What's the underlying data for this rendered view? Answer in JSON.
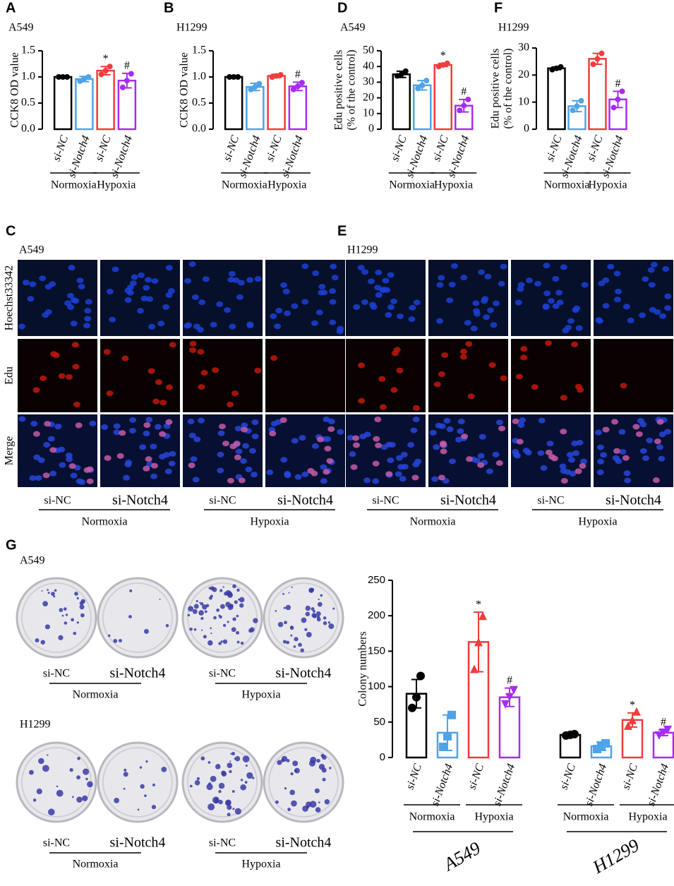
{
  "chart_data": [
    {
      "type": "bar",
      "panel": "A",
      "title": "A549",
      "ylabel": [
        "CCK8 OD value"
      ],
      "categories": [
        "si-NC",
        "si-Notch4",
        "si-NC",
        "si-Notch4"
      ],
      "groups": [
        "Normoxia",
        "Hypoxia"
      ],
      "values": [
        1.0,
        0.96,
        1.12,
        0.93
      ],
      "errors": [
        0.01,
        0.05,
        0.08,
        0.14
      ],
      "points": [
        [
          1.0,
          1.0,
          1.0
        ],
        [
          0.92,
          0.97,
          1.0
        ],
        [
          1.05,
          1.12,
          1.2
        ],
        [
          0.8,
          0.93,
          1.06
        ]
      ],
      "markers": [
        null,
        null,
        "*",
        "#"
      ],
      "colors": [
        "#000000",
        "#4fa3e8",
        "#f03c3c",
        "#a52cf0"
      ],
      "ylim": [
        0,
        1.5
      ],
      "yticks": [
        {
          "value": 0,
          "label": "0.0"
        },
        {
          "value": 0.5,
          "label": "0.5"
        },
        {
          "value": 1,
          "label": "1.0"
        },
        {
          "value": 1.5,
          "label": "1.5"
        }
      ]
    },
    {
      "type": "bar",
      "panel": "B",
      "title": "H1299",
      "ylabel": [
        "CCK8 OD value"
      ],
      "categories": [
        "si-NC",
        "si-Notch4",
        "si-NC",
        "si-Notch4"
      ],
      "groups": [
        "Normoxia",
        "Hypoxia"
      ],
      "values": [
        1.0,
        0.81,
        1.02,
        0.82
      ],
      "errors": [
        0.01,
        0.07,
        0.03,
        0.08
      ],
      "points": [
        [
          1.0,
          1.0,
          1.0
        ],
        [
          0.76,
          0.81,
          0.87
        ],
        [
          1.0,
          1.02,
          1.04
        ],
        [
          0.76,
          0.82,
          0.89
        ]
      ],
      "markers": [
        null,
        null,
        null,
        "#"
      ],
      "colors": [
        "#000000",
        "#4fa3e8",
        "#f03c3c",
        "#a52cf0"
      ],
      "ylim": [
        0,
        1.5
      ],
      "yticks": [
        {
          "value": 0,
          "label": "0.0"
        },
        {
          "value": 0.5,
          "label": "0.5"
        },
        {
          "value": 1,
          "label": "1.0"
        },
        {
          "value": 1.5,
          "label": "1.5"
        }
      ]
    },
    {
      "type": "bar",
      "panel": "D",
      "title": "A549",
      "ylabel": [
        "Edu positive cells",
        "(% of the control)"
      ],
      "categories": [
        "si-NC",
        "si-Notch4",
        "si-NC",
        "si-Notch4"
      ],
      "groups": [
        "Normoxia",
        "Hypoxia"
      ],
      "values": [
        35,
        28,
        41,
        15
      ],
      "errors": [
        2,
        3,
        1,
        4
      ],
      "points": [
        [
          34,
          35,
          37
        ],
        [
          26,
          28,
          31
        ],
        [
          40,
          41,
          42
        ],
        [
          12,
          15,
          19
        ]
      ],
      "markers": [
        null,
        null,
        "*",
        "#"
      ],
      "colors": [
        "#000000",
        "#4fa3e8",
        "#f03c3c",
        "#a52cf0"
      ],
      "ylim": [
        0,
        50
      ],
      "yticks": [
        0,
        10,
        20,
        30,
        40,
        50
      ]
    },
    {
      "type": "bar",
      "panel": "F",
      "title": "H1299",
      "ylabel": [
        "Edu positive cells",
        "(% of the control)"
      ],
      "categories": [
        "si-NC",
        "si-Notch4",
        "si-NC",
        "si-Notch4"
      ],
      "groups": [
        "Normoxia",
        "Hypoxia"
      ],
      "values": [
        22.5,
        8.5,
        26,
        11
      ],
      "errors": [
        0.5,
        2,
        2,
        3
      ],
      "points": [
        [
          22,
          22.5,
          23
        ],
        [
          7,
          8.5,
          10.5
        ],
        [
          24,
          26,
          28
        ],
        [
          8,
          11,
          14
        ]
      ],
      "markers": [
        null,
        null,
        null,
        "#"
      ],
      "colors": [
        "#000000",
        "#4fa3e8",
        "#f03c3c",
        "#a52cf0"
      ],
      "ylim": [
        0,
        30
      ],
      "yticks": [
        0,
        10,
        20,
        30
      ]
    },
    {
      "type": "bar",
      "ylabel": [
        "Colony numbers"
      ],
      "categories": [
        "si-NC",
        "si-Notch4",
        "si-NC",
        "si-Notch4",
        "si-NC",
        "si-Notch4",
        "si-NC",
        "si-Notch4"
      ],
      "groups": [
        "Normoxia",
        "Hypoxia",
        "Normoxia",
        "Hypoxia"
      ],
      "supergroups": [
        "A549",
        "H1299"
      ],
      "values": [
        90,
        35,
        163,
        85,
        32,
        16,
        53,
        35
      ],
      "errors": [
        20,
        25,
        42,
        13,
        1,
        6,
        10,
        4
      ],
      "points": [
        [
          70,
          85,
          115
        ],
        [
          15,
          30,
          60
        ],
        [
          125,
          163,
          200
        ],
        [
          75,
          85,
          95
        ],
        [
          31,
          32,
          33
        ],
        [
          12,
          16,
          20
        ],
        [
          45,
          53,
          65
        ],
        [
          31,
          35,
          39
        ]
      ],
      "point_shapes": [
        "circle",
        "square",
        "triangle-up",
        "triangle-down",
        "circle",
        "square",
        "triangle-up",
        "triangle-down"
      ],
      "markers": [
        null,
        null,
        "*",
        "#",
        null,
        null,
        "*",
        "#"
      ],
      "colors": [
        "#000000",
        "#4fa3e8",
        "#f03c3c",
        "#a52cf0",
        "#000000",
        "#4fa3e8",
        "#f03c3c",
        "#a52cf0"
      ],
      "ylim": [
        0,
        250
      ],
      "yticks": [
        0,
        50,
        100,
        150,
        200,
        250
      ]
    }
  ],
  "micrographs": [
    {
      "panel": "C",
      "cell_line": "A549",
      "rows": [
        "Hoechst33342",
        "Edu",
        "Merge"
      ],
      "columns": [
        "si-NC",
        "si-Notch4",
        "si-NC",
        "si-Notch4"
      ],
      "groups": [
        "Normoxia",
        "Hypoxia"
      ]
    },
    {
      "panel": "E",
      "cell_line": "H1299",
      "columns": [
        "si-NC",
        "si-Notch4",
        "si-NC",
        "si-Notch4"
      ],
      "groups": [
        "Normoxia",
        "Hypoxia"
      ]
    }
  ],
  "colony_images": {
    "panel": "G",
    "sets": [
      {
        "cell_line": "A549",
        "columns": [
          "si-NC",
          "si-Notch4",
          "si-NC",
          "si-Notch4"
        ],
        "groups": [
          "Normoxia",
          "Hypoxia"
        ]
      },
      {
        "cell_line": "H1299",
        "columns": [
          "si-NC",
          "si-Notch4",
          "si-NC",
          "si-Notch4"
        ],
        "groups": [
          "Normoxia",
          "Hypoxia"
        ]
      }
    ]
  }
}
